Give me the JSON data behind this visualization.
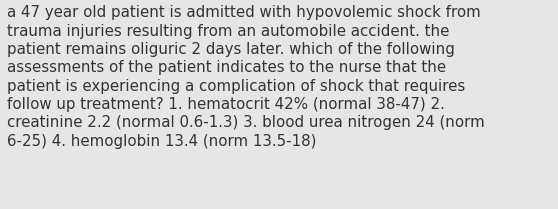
{
  "lines": [
    "a 47 year old patient is admitted with hypovolemic shock from",
    "trauma injuries resulting from an automobile accident. the",
    "patient remains oliguric 2 days later. which of the following",
    "assessments of the patient indicates to the nurse that the",
    "patient is experiencing a complication of shock that requires",
    "follow up treatment? 1. hematocrit 42% (normal 38-47) 2.",
    "creatinine 2.2 (normal 0.6-1.3) 3. blood urea nitrogen 24 (norm",
    "6-25) 4. hemoglobin 13.4 (norm 13.5-18)"
  ],
  "bg_color": "#e6e6e6",
  "text_color": "#333333",
  "font_size": 10.8,
  "font_family": "DejaVu Sans",
  "fig_width": 5.58,
  "fig_height": 2.09,
  "dpi": 100
}
